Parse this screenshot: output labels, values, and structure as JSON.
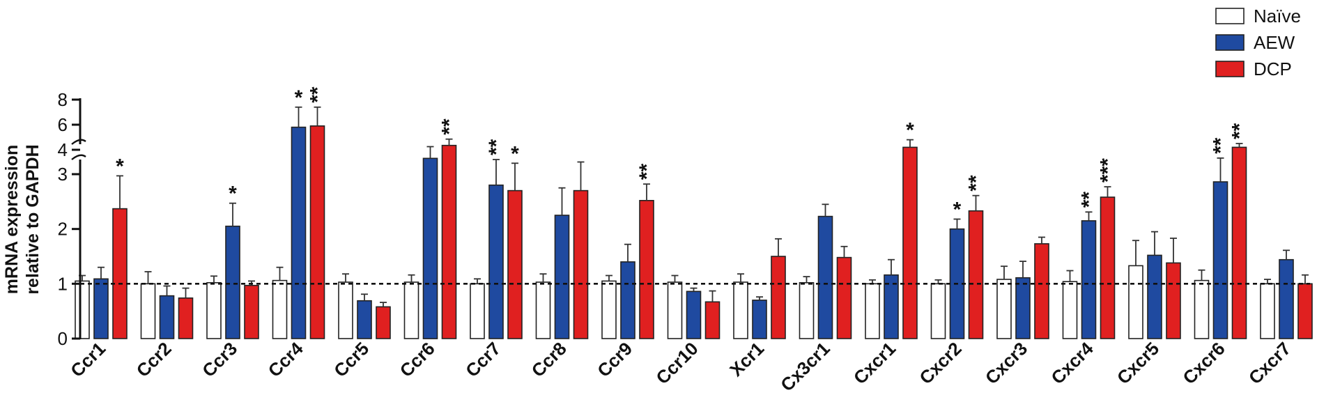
{
  "chart_data": {
    "type": "bar",
    "title": "",
    "ylabel_lines": [
      "mRNA expression",
      "relative to GAPDH"
    ],
    "xlabel": "",
    "axis": {
      "scale": "broken-linear",
      "lower_range": [
        0,
        3
      ],
      "upper_range": [
        3,
        8
      ],
      "ticks": [
        "0",
        "1",
        "2",
        "3",
        "4",
        "6",
        "8"
      ],
      "tick_values": [
        0,
        1,
        2,
        3,
        4,
        6,
        8
      ]
    },
    "reference_line": 1,
    "legend": {
      "placement": "top-right",
      "entries": [
        {
          "name": "Naïve",
          "color": "#ffffff"
        },
        {
          "name": "AEW",
          "color": "#1f4aa0"
        },
        {
          "name": "DCP",
          "color": "#e02020"
        }
      ]
    },
    "categories": [
      "Ccr1",
      "Ccr2",
      "Ccr3",
      "Ccr4",
      "Ccr5",
      "Ccr6",
      "Ccr7",
      "Ccr8",
      "Ccr9",
      "Ccr10",
      "Xcr1",
      "Cx3cr1",
      "Cxcr1",
      "Cxcr2",
      "Cxcr3",
      "Cxcr4",
      "Cxcr5",
      "Cxcr6",
      "Cxcr7"
    ],
    "series": [
      {
        "name": "Naïve",
        "color": "#ffffff",
        "values": [
          1.05,
          1.0,
          1.02,
          1.06,
          1.03,
          1.03,
          1.0,
          1.03,
          1.05,
          1.03,
          1.03,
          1.02,
          1.0,
          1.0,
          1.08,
          1.04,
          1.33,
          1.06,
          1.0
        ],
        "errors": [
          0.1,
          0.22,
          0.12,
          0.24,
          0.15,
          0.13,
          0.09,
          0.15,
          0.1,
          0.12,
          0.15,
          0.11,
          0.07,
          0.07,
          0.24,
          0.2,
          0.46,
          0.19,
          0.08
        ]
      },
      {
        "name": "AEW",
        "color": "#1f4aa0",
        "values": [
          1.09,
          0.78,
          2.05,
          5.8,
          0.69,
          3.65,
          2.8,
          2.25,
          1.4,
          0.86,
          0.7,
          2.23,
          1.16,
          2.0,
          1.11,
          2.15,
          1.52,
          2.86,
          1.44
        ],
        "errors": [
          0.21,
          0.18,
          0.42,
          1.6,
          0.12,
          0.6,
          0.8,
          0.5,
          0.32,
          0.06,
          0.06,
          0.22,
          0.28,
          0.18,
          0.3,
          0.16,
          0.43,
          0.8,
          0.17
        ]
      },
      {
        "name": "DCP",
        "color": "#e02020",
        "values": [
          2.37,
          0.74,
          0.97,
          5.9,
          0.58,
          4.35,
          2.7,
          2.7,
          2.52,
          0.67,
          1.5,
          1.48,
          4.2,
          2.33,
          1.73,
          2.58,
          1.38,
          4.2,
          1.0
        ],
        "errors": [
          0.6,
          0.18,
          0.08,
          1.5,
          0.08,
          0.5,
          0.75,
          0.8,
          0.3,
          0.2,
          0.32,
          0.2,
          0.6,
          0.28,
          0.12,
          0.19,
          0.45,
          0.3,
          0.16
        ]
      }
    ],
    "significance": [
      {
        "category": "Ccr1",
        "series": "DCP",
        "label": "*"
      },
      {
        "category": "Ccr3",
        "series": "AEW",
        "label": "*"
      },
      {
        "category": "Ccr4",
        "series": "AEW",
        "label": "*"
      },
      {
        "category": "Ccr4",
        "series": "DCP",
        "label": "**"
      },
      {
        "category": "Ccr6",
        "series": "DCP",
        "label": "**"
      },
      {
        "category": "Ccr7",
        "series": "AEW",
        "label": "**"
      },
      {
        "category": "Ccr7",
        "series": "DCP",
        "label": "*"
      },
      {
        "category": "Ccr9",
        "series": "DCP",
        "label": "**"
      },
      {
        "category": "Cxcr1",
        "series": "DCP",
        "label": "*"
      },
      {
        "category": "Cxcr2",
        "series": "AEW",
        "label": "*"
      },
      {
        "category": "Cxcr2",
        "series": "DCP",
        "label": "**"
      },
      {
        "category": "Cxcr4",
        "series": "AEW",
        "label": "**"
      },
      {
        "category": "Cxcr4",
        "series": "DCP",
        "label": "***"
      },
      {
        "category": "Cxcr6",
        "series": "AEW",
        "label": "**"
      },
      {
        "category": "Cxcr6",
        "series": "DCP",
        "label": "**"
      }
    ],
    "grid": false
  }
}
